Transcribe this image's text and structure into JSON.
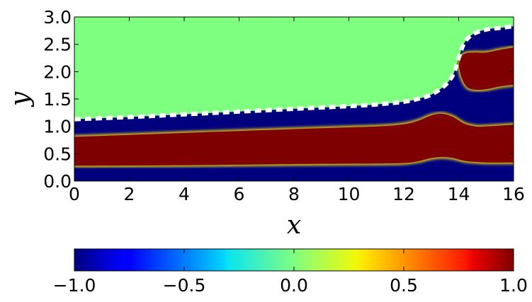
{
  "chart_data": {
    "type": "heatmap",
    "xlabel": "x",
    "ylabel": "y",
    "xlim": [
      0,
      16
    ],
    "ylim": [
      0,
      3
    ],
    "xticks": [
      {
        "value": 0,
        "label": "0"
      },
      {
        "value": 2,
        "label": "2"
      },
      {
        "value": 4,
        "label": "4"
      },
      {
        "value": 6,
        "label": "6"
      },
      {
        "value": 8,
        "label": "8"
      },
      {
        "value": 10,
        "label": "10"
      },
      {
        "value": 12,
        "label": "12"
      },
      {
        "value": 14,
        "label": "14"
      },
      {
        "value": 16,
        "label": "16"
      }
    ],
    "yticks": [
      {
        "value": 0.0,
        "label": "0.0"
      },
      {
        "value": 0.5,
        "label": "0.5"
      },
      {
        "value": 1.0,
        "label": "1.0"
      },
      {
        "value": 1.5,
        "label": "1.5"
      },
      {
        "value": 2.0,
        "label": "2.0"
      },
      {
        "value": 2.5,
        "label": "2.5"
      },
      {
        "value": 3.0,
        "label": "3.0"
      }
    ],
    "colormap": "jet",
    "colorbar": {
      "orientation": "horizontal",
      "range": [
        -1.0,
        1.0
      ],
      "ticks": [
        {
          "value": -1.0,
          "label": "−1.0"
        },
        {
          "value": -0.5,
          "label": "−0.5"
        },
        {
          "value": 0.0,
          "label": "0.0"
        },
        {
          "value": 0.5,
          "label": "0.5"
        },
        {
          "value": 1.0,
          "label": "1.0"
        }
      ]
    },
    "field_above_interface_value": 0.0,
    "interface": {
      "style": "white dashed",
      "x": [
        0,
        2,
        4,
        6,
        8,
        10,
        11,
        12,
        12.5,
        13,
        13.5,
        13.8,
        14.0,
        14.2,
        14.5,
        15,
        15.5,
        16
      ],
      "y": [
        1.13,
        1.17,
        1.22,
        1.27,
        1.32,
        1.37,
        1.4,
        1.45,
        1.5,
        1.58,
        1.75,
        1.95,
        2.25,
        2.52,
        2.68,
        2.77,
        2.8,
        2.83
      ]
    },
    "band_lower_edge": {
      "x": [
        0,
        4,
        8,
        11,
        12,
        12.5,
        13,
        13.4,
        13.8,
        14.2,
        14.6,
        15,
        16
      ],
      "y": [
        0.28,
        0.29,
        0.31,
        0.32,
        0.33,
        0.36,
        0.42,
        0.44,
        0.42,
        0.37,
        0.35,
        0.34,
        0.34
      ]
    },
    "band_upper_edge": {
      "x": [
        0,
        4,
        8,
        11,
        12,
        12.5,
        13,
        13.4,
        13.8,
        14.2,
        14.6,
        15,
        16
      ],
      "y": [
        0.81,
        0.88,
        0.95,
        1.0,
        1.04,
        1.1,
        1.2,
        1.23,
        1.17,
        1.05,
        1.0,
        1.0,
        1.03
      ]
    },
    "upper_lobe_edges": {
      "x": [
        14.0,
        14.1,
        14.3,
        14.6,
        15.0,
        15.5,
        16
      ],
      "top": [
        2.12,
        2.28,
        2.34,
        2.35,
        2.35,
        2.4,
        2.44
      ],
      "bottom": [
        2.12,
        1.9,
        1.72,
        1.67,
        1.68,
        1.73,
        1.76
      ]
    },
    "colors": {
      "min": "#00007f",
      "max": "#7f0000",
      "mid": "#7fff7f",
      "interface": "#ffffff"
    }
  }
}
